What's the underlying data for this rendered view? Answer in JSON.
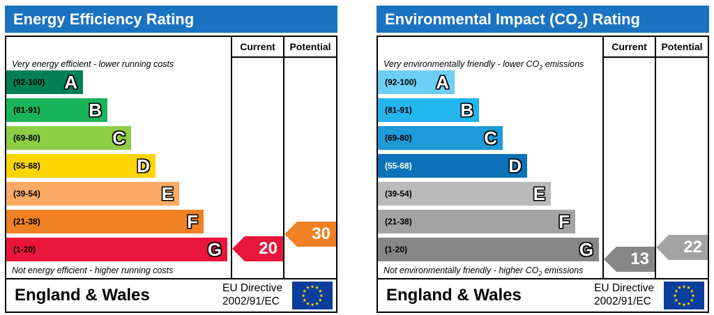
{
  "chart_data": [
    {
      "type": "bar",
      "title": "Energy Efficiency Rating",
      "columns": [
        "Current",
        "Potential"
      ],
      "top_note": "Very energy efficient - lower running costs",
      "bottom_note": "Not energy efficient - higher running costs",
      "bands": [
        {
          "range": "(92-100)",
          "letter": "A",
          "color": "#008054"
        },
        {
          "range": "(81-91)",
          "letter": "B",
          "color": "#19b459"
        },
        {
          "range": "(69-80)",
          "letter": "C",
          "color": "#8dce46"
        },
        {
          "range": "(55-68)",
          "letter": "D",
          "color": "#ffd500"
        },
        {
          "range": "(39-54)",
          "letter": "E",
          "color": "#fcaa65"
        },
        {
          "range": "(21-38)",
          "letter": "F",
          "color": "#ef8023"
        },
        {
          "range": "(1-20)",
          "letter": "G",
          "color": "#e9153b"
        }
      ],
      "current": {
        "value": 20,
        "label": "20",
        "band": "G",
        "color": "#e9153b"
      },
      "potential": {
        "value": 30,
        "label": "30",
        "band": "F",
        "color": "#ef8023"
      },
      "country": "England & Wales",
      "directive_line1": "EU Directive",
      "directive_line2": "2002/91/EC"
    },
    {
      "type": "bar",
      "title": "Environmental Impact (CO",
      "title_sub": "2",
      "title_end": ") Rating",
      "columns": [
        "Current",
        "Potential"
      ],
      "top_note": "Very environmentally friendly - lower CO",
      "top_note_sub": "2",
      "top_note_end": " emissions",
      "bottom_note": "Not environmentally friendly - higher CO",
      "bottom_note_sub": "2",
      "bottom_note_end": " emissions",
      "bands": [
        {
          "range": "(92-100)",
          "letter": "A",
          "color": "#6ecff6"
        },
        {
          "range": "(81-91)",
          "letter": "B",
          "color": "#22b5ee"
        },
        {
          "range": "(69-80)",
          "letter": "C",
          "color": "#1d9ad7"
        },
        {
          "range": "(55-68)",
          "letter": "D",
          "color": "#0d72b9"
        },
        {
          "range": "(39-54)",
          "letter": "E",
          "color": "#bababa"
        },
        {
          "range": "(21-38)",
          "letter": "F",
          "color": "#a3a3a3"
        },
        {
          "range": "(1-20)",
          "letter": "G",
          "color": "#878787"
        }
      ],
      "current": {
        "value": 13,
        "label": "13",
        "band": "G",
        "color": "#878787"
      },
      "potential": {
        "value": 22,
        "label": "22",
        "band": "F",
        "color": "#a3a3a3"
      },
      "country": "England & Wales",
      "directive_line1": "EU Directive",
      "directive_line2": "2002/91/EC"
    }
  ]
}
